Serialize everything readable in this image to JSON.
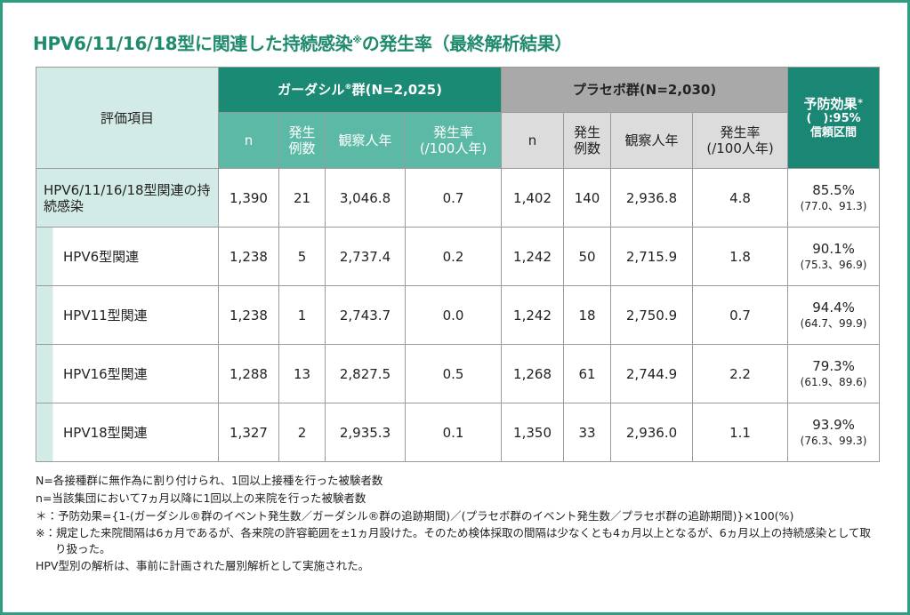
{
  "title": {
    "text": "HPV6/11/16/18型に関連した持続感染",
    "mark": "※",
    "suffix": "の発生率（最終解析結果）"
  },
  "table": {
    "item_header": "評価項目",
    "groups": [
      {
        "name": "ガーダシル",
        "mark": "®",
        "suffix": "群(N=2,025)",
        "columns": [
          [
            "n"
          ],
          [
            "発生",
            "例数"
          ],
          [
            "観察人年"
          ],
          [
            "発生率",
            "(/100人年)"
          ]
        ]
      },
      {
        "name": "プラセボ群(N=2,030)",
        "columns": [
          [
            "n"
          ],
          [
            "発生",
            "例数"
          ],
          [
            "観察人年"
          ],
          [
            "発生率",
            "(/100人年)"
          ]
        ]
      }
    ],
    "effect_header": {
      "text": "予防効果",
      "mark": "＊",
      "line2": "(　):95%",
      "line3": "信頼区間"
    },
    "rows": [
      {
        "label": "HPV6/11/16/18型関連の持続感染",
        "cells": [
          "1,390",
          "21",
          "3,046.8",
          "0.7",
          "1,402",
          "140",
          "2,936.8",
          "4.8"
        ],
        "effect": "85.5%",
        "ci": "(77.0、91.3)"
      },
      {
        "label": "HPV6型関連",
        "cells": [
          "1,238",
          "5",
          "2,737.4",
          "0.2",
          "1,242",
          "50",
          "2,715.9",
          "1.8"
        ],
        "effect": "90.1%",
        "ci": "(75.3、96.9)"
      },
      {
        "label": "HPV11型関連",
        "cells": [
          "1,238",
          "1",
          "2,743.7",
          "0.0",
          "1,242",
          "18",
          "2,750.9",
          "0.7"
        ],
        "effect": "94.4%",
        "ci": "(64.7、99.9)"
      },
      {
        "label": "HPV16型関連",
        "cells": [
          "1,288",
          "13",
          "2,827.5",
          "0.5",
          "1,268",
          "61",
          "2,744.9",
          "2.2"
        ],
        "effect": "79.3%",
        "ci": "(61.9、89.6)"
      },
      {
        "label": "HPV18型関連",
        "cells": [
          "1,327",
          "2",
          "2,935.3",
          "0.1",
          "1,350",
          "33",
          "2,936.0",
          "1.1"
        ],
        "effect": "93.9%",
        "ci": "(76.3、99.3)"
      }
    ]
  },
  "notes": [
    "N=各接種群に無作為に割り付けられ、1回以上接種を行った被験者数",
    "n=当該集団において7ヵ月以降に1回以上の来院を行った被験者数",
    "＊：予防効果={1-(ガーダシル®群のイベント発生数／ガーダシル®群の追跡期間)／(プラセボ群のイベント発生数／プラセボ群の追跡期間)}×100(%)",
    "※：規定した来院間隔は6ヵ月であるが、各来院の許容範囲を±1ヵ月設けた。そのため検体採取の間隔は少なくとも4ヵ月以上となるが、6ヵ月以上の持続感染として取り扱った。",
    "HPV型別の解析は、事前に計画された層別解析として実施された。"
  ]
}
